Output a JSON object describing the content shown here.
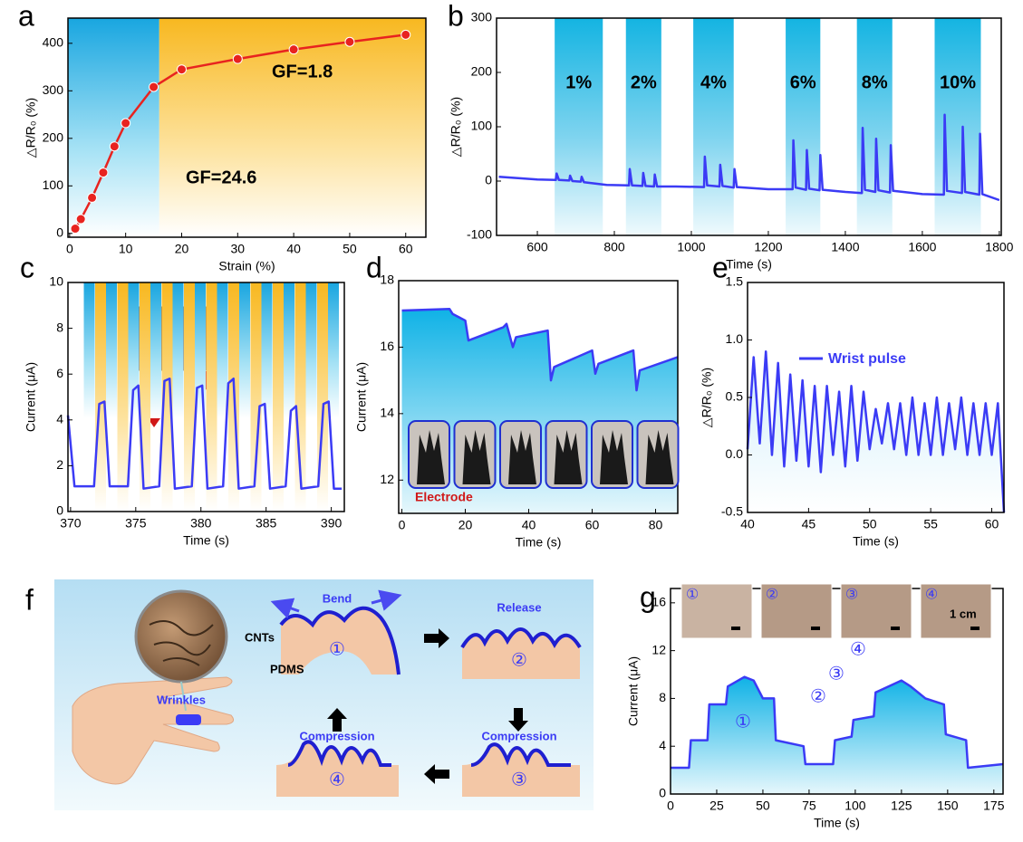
{
  "chart_data": [
    {
      "type": "line",
      "panel_label": "a",
      "xlabel": "Strain (%)",
      "ylabel": "△R/R₀ (%)",
      "color": "#e8231f",
      "markers": true,
      "x": [
        1,
        2,
        4,
        6,
        8,
        10,
        15,
        20,
        30,
        40,
        50,
        60
      ],
      "values": [
        10,
        30,
        75,
        128,
        183,
        232,
        308,
        345,
        367,
        387,
        403,
        418
      ],
      "xlim": [
        -0.3,
        63.6
      ],
      "ylim": [
        -8,
        453
      ],
      "xticks": [
        0,
        10,
        20,
        30,
        40,
        50,
        60
      ],
      "yticks": [
        0,
        100,
        200,
        300,
        400
      ],
      "regions": [
        {
          "from": -0.3,
          "to": 16,
          "color": "#1ba7e0"
        },
        {
          "from": 16,
          "to": 63.6,
          "color": "#f9c02a"
        }
      ],
      "annotations": [
        "GF=24.6",
        "GF=1.8"
      ]
    },
    {
      "type": "line",
      "panel_label": "b",
      "xlabel": "Time (s)",
      "ylabel": "△R/R₀ (%)",
      "color": "#3b3bf5",
      "x": [
        500,
        600,
        648,
        650,
        656,
        683,
        685,
        691,
        713,
        715,
        721,
        780,
        838,
        840,
        846,
        873,
        875,
        881,
        903,
        905,
        911,
        960,
        1033,
        1035,
        1041,
        1073,
        1075,
        1081,
        1110,
        1112,
        1118,
        1200,
        1263,
        1265,
        1271,
        1298,
        1300,
        1306,
        1333,
        1335,
        1341,
        1400,
        1443,
        1445,
        1451,
        1478,
        1480,
        1486,
        1516,
        1518,
        1524,
        1600,
        1656,
        1658,
        1664,
        1703,
        1705,
        1711,
        1748,
        1750,
        1756,
        1800
      ],
      "values": [
        8,
        3,
        2,
        14,
        2,
        1,
        10,
        0,
        -1,
        8,
        -2,
        -7,
        -8,
        22,
        -8,
        -9,
        15,
        -9,
        -10,
        12,
        -10,
        -10,
        -11,
        45,
        -8,
        -10,
        30,
        -9,
        -12,
        22,
        -11,
        -15,
        -15,
        75,
        -12,
        -16,
        57,
        -14,
        -17,
        48,
        -16,
        -20,
        -22,
        98,
        -16,
        -20,
        78,
        -17,
        -21,
        66,
        -18,
        -24,
        -25,
        122,
        -18,
        -22,
        100,
        -20,
        -25,
        87,
        -24,
        -35
      ],
      "xlim": [
        494,
        1805
      ],
      "ylim": [
        -100,
        300
      ],
      "xticks": [
        600,
        800,
        1000,
        1200,
        1400,
        1600,
        1800
      ],
      "yticks": [
        -100,
        0,
        100,
        200,
        300
      ],
      "bands": [
        {
          "from": 645,
          "to": 770,
          "label": "1%"
        },
        {
          "from": 830,
          "to": 922,
          "label": "2%"
        },
        {
          "from": 1005,
          "to": 1110,
          "label": "4%"
        },
        {
          "from": 1245,
          "to": 1335,
          "label": "6%"
        },
        {
          "from": 1430,
          "to": 1522,
          "label": "8%"
        },
        {
          "from": 1632,
          "to": 1752,
          "label": "10%"
        }
      ]
    },
    {
      "type": "line",
      "panel_label": "c",
      "xlabel": "Time (s)",
      "ylabel": "Current (μA)",
      "color": "#3b3bf5",
      "x": [
        369.8,
        370.3,
        371.8,
        372.2,
        372.6,
        373.0,
        374.4,
        374.8,
        375.2,
        375.6,
        376.8,
        377.2,
        377.6,
        378.0,
        379.3,
        379.7,
        380.1,
        380.5,
        381.7,
        382.1,
        382.5,
        382.9,
        384.1,
        384.5,
        384.9,
        385.3,
        386.5,
        386.9,
        387.3,
        387.7,
        389.0,
        389.4,
        389.8,
        390.2,
        390.8
      ],
      "values": [
        4.2,
        1.1,
        1.1,
        4.7,
        4.8,
        1.1,
        1.1,
        5.3,
        5.5,
        1.0,
        1.1,
        5.7,
        5.8,
        1.0,
        1.1,
        5.4,
        5.5,
        1.0,
        1.1,
        5.6,
        5.8,
        1.0,
        1.1,
        4.6,
        4.7,
        1.0,
        1.1,
        4.4,
        4.6,
        1.0,
        1.1,
        4.7,
        4.8,
        1.0,
        1.0
      ],
      "xlim": [
        369.8,
        391
      ],
      "ylim": [
        0,
        10
      ],
      "xticks": [
        370,
        375,
        380,
        385,
        390
      ],
      "yticks": [
        0,
        2,
        4,
        6,
        8,
        10
      ]
    },
    {
      "type": "line",
      "panel_label": "d",
      "xlabel": "Time (s)",
      "ylabel": "Current (μA)",
      "color": "#3b3bf5",
      "fill_area": true,
      "x": [
        0,
        15,
        16,
        20,
        21,
        32,
        33,
        35,
        36,
        46,
        47,
        48,
        60,
        61,
        62,
        73,
        74,
        75,
        87
      ],
      "values": [
        17.1,
        17.15,
        17.0,
        16.8,
        16.2,
        16.6,
        16.7,
        16.0,
        16.3,
        16.5,
        15.0,
        15.4,
        15.9,
        15.2,
        15.5,
        15.9,
        14.7,
        15.3,
        15.7
      ],
      "xlim": [
        -1,
        87
      ],
      "ylim": [
        11,
        18
      ],
      "xticks": [
        0,
        20,
        40,
        60,
        80
      ],
      "yticks": [
        12,
        14,
        16,
        18
      ],
      "inset_label": "Electrode"
    },
    {
      "type": "line",
      "panel_label": "e",
      "xlabel": "Time (s)",
      "ylabel": "△R/R₀ (%)",
      "fill_area": true,
      "legend": "upper right",
      "x": [
        40,
        40.5,
        41,
        41.5,
        42,
        42.5,
        43,
        43.5,
        44,
        44.5,
        45,
        45.5,
        46,
        46.5,
        47,
        47.5,
        48,
        48.5,
        49,
        49.5,
        50,
        50.5,
        51,
        51.5,
        52,
        52.5,
        53,
        53.5,
        54,
        54.5,
        55,
        55.5,
        56,
        56.5,
        57,
        57.5,
        58,
        58.5,
        59,
        59.5,
        60,
        60.5,
        61
      ],
      "series": [
        {
          "name": "Wrist pulse",
          "color": "#3b3bf5",
          "values": [
            0.05,
            0.85,
            0.1,
            0.9,
            0.0,
            0.8,
            -0.1,
            0.7,
            -0.05,
            0.65,
            -0.1,
            0.6,
            -0.15,
            0.6,
            0.0,
            0.55,
            -0.1,
            0.6,
            -0.05,
            0.55,
            0.05,
            0.4,
            0.1,
            0.45,
            0.05,
            0.45,
            0.0,
            0.5,
            0.0,
            0.45,
            0.0,
            0.5,
            0.0,
            0.45,
            0.05,
            0.5,
            0.0,
            0.45,
            0.0,
            0.45,
            0.0,
            0.45,
            -0.5
          ]
        }
      ],
      "xlim": [
        40,
        61
      ],
      "ylim": [
        -0.5,
        1.5
      ],
      "xticks": [
        40,
        45,
        50,
        55,
        60
      ],
      "yticks": [
        -0.5,
        {
          "value": 0,
          "label": "0.0"
        },
        0.5,
        {
          "value": 1,
          "label": "1.0"
        },
        1.5
      ]
    },
    {
      "type": "line",
      "panel_label": "g",
      "xlabel": "Time (s)",
      "ylabel": "Current (μA)",
      "color": "#3b3bf5",
      "fill_area": true,
      "x": [
        0,
        10,
        11,
        20,
        21,
        30,
        31,
        40,
        45,
        50,
        56,
        57,
        72,
        73,
        88,
        89,
        98,
        99,
        110,
        111,
        125,
        130,
        138,
        148,
        149,
        160,
        161,
        180
      ],
      "values": [
        2.2,
        2.2,
        4.5,
        4.5,
        7.5,
        7.5,
        9.0,
        9.8,
        9.5,
        8.0,
        8.0,
        4.5,
        4.0,
        2.5,
        2.5,
        4.5,
        4.8,
        6.2,
        6.5,
        8.5,
        9.5,
        9.0,
        8.0,
        7.5,
        5.0,
        4.5,
        2.2,
        2.5
      ],
      "xlim": [
        0,
        180
      ],
      "ylim": [
        0,
        17.2
      ],
      "xticks": [
        0,
        25,
        50,
        75,
        100,
        125,
        150,
        175
      ],
      "yticks": [
        0,
        4,
        8,
        12,
        16
      ],
      "annotations": [
        "①",
        "②",
        "③",
        "④"
      ],
      "inset_labels": [
        "①",
        "②",
        "③",
        "④"
      ],
      "scale_label": "1 cm"
    }
  ],
  "diagram": {
    "panel_label": "f",
    "labels": {
      "wrinkles": "Wrinkles",
      "cnts": "CNTs",
      "pdms": "PDMS"
    },
    "steps": [
      {
        "number": "①",
        "action": "Bend"
      },
      {
        "number": "②",
        "action": "Release"
      },
      {
        "number": "③",
        "action": "Compression"
      },
      {
        "number": "④",
        "action": "Compression"
      }
    ]
  }
}
